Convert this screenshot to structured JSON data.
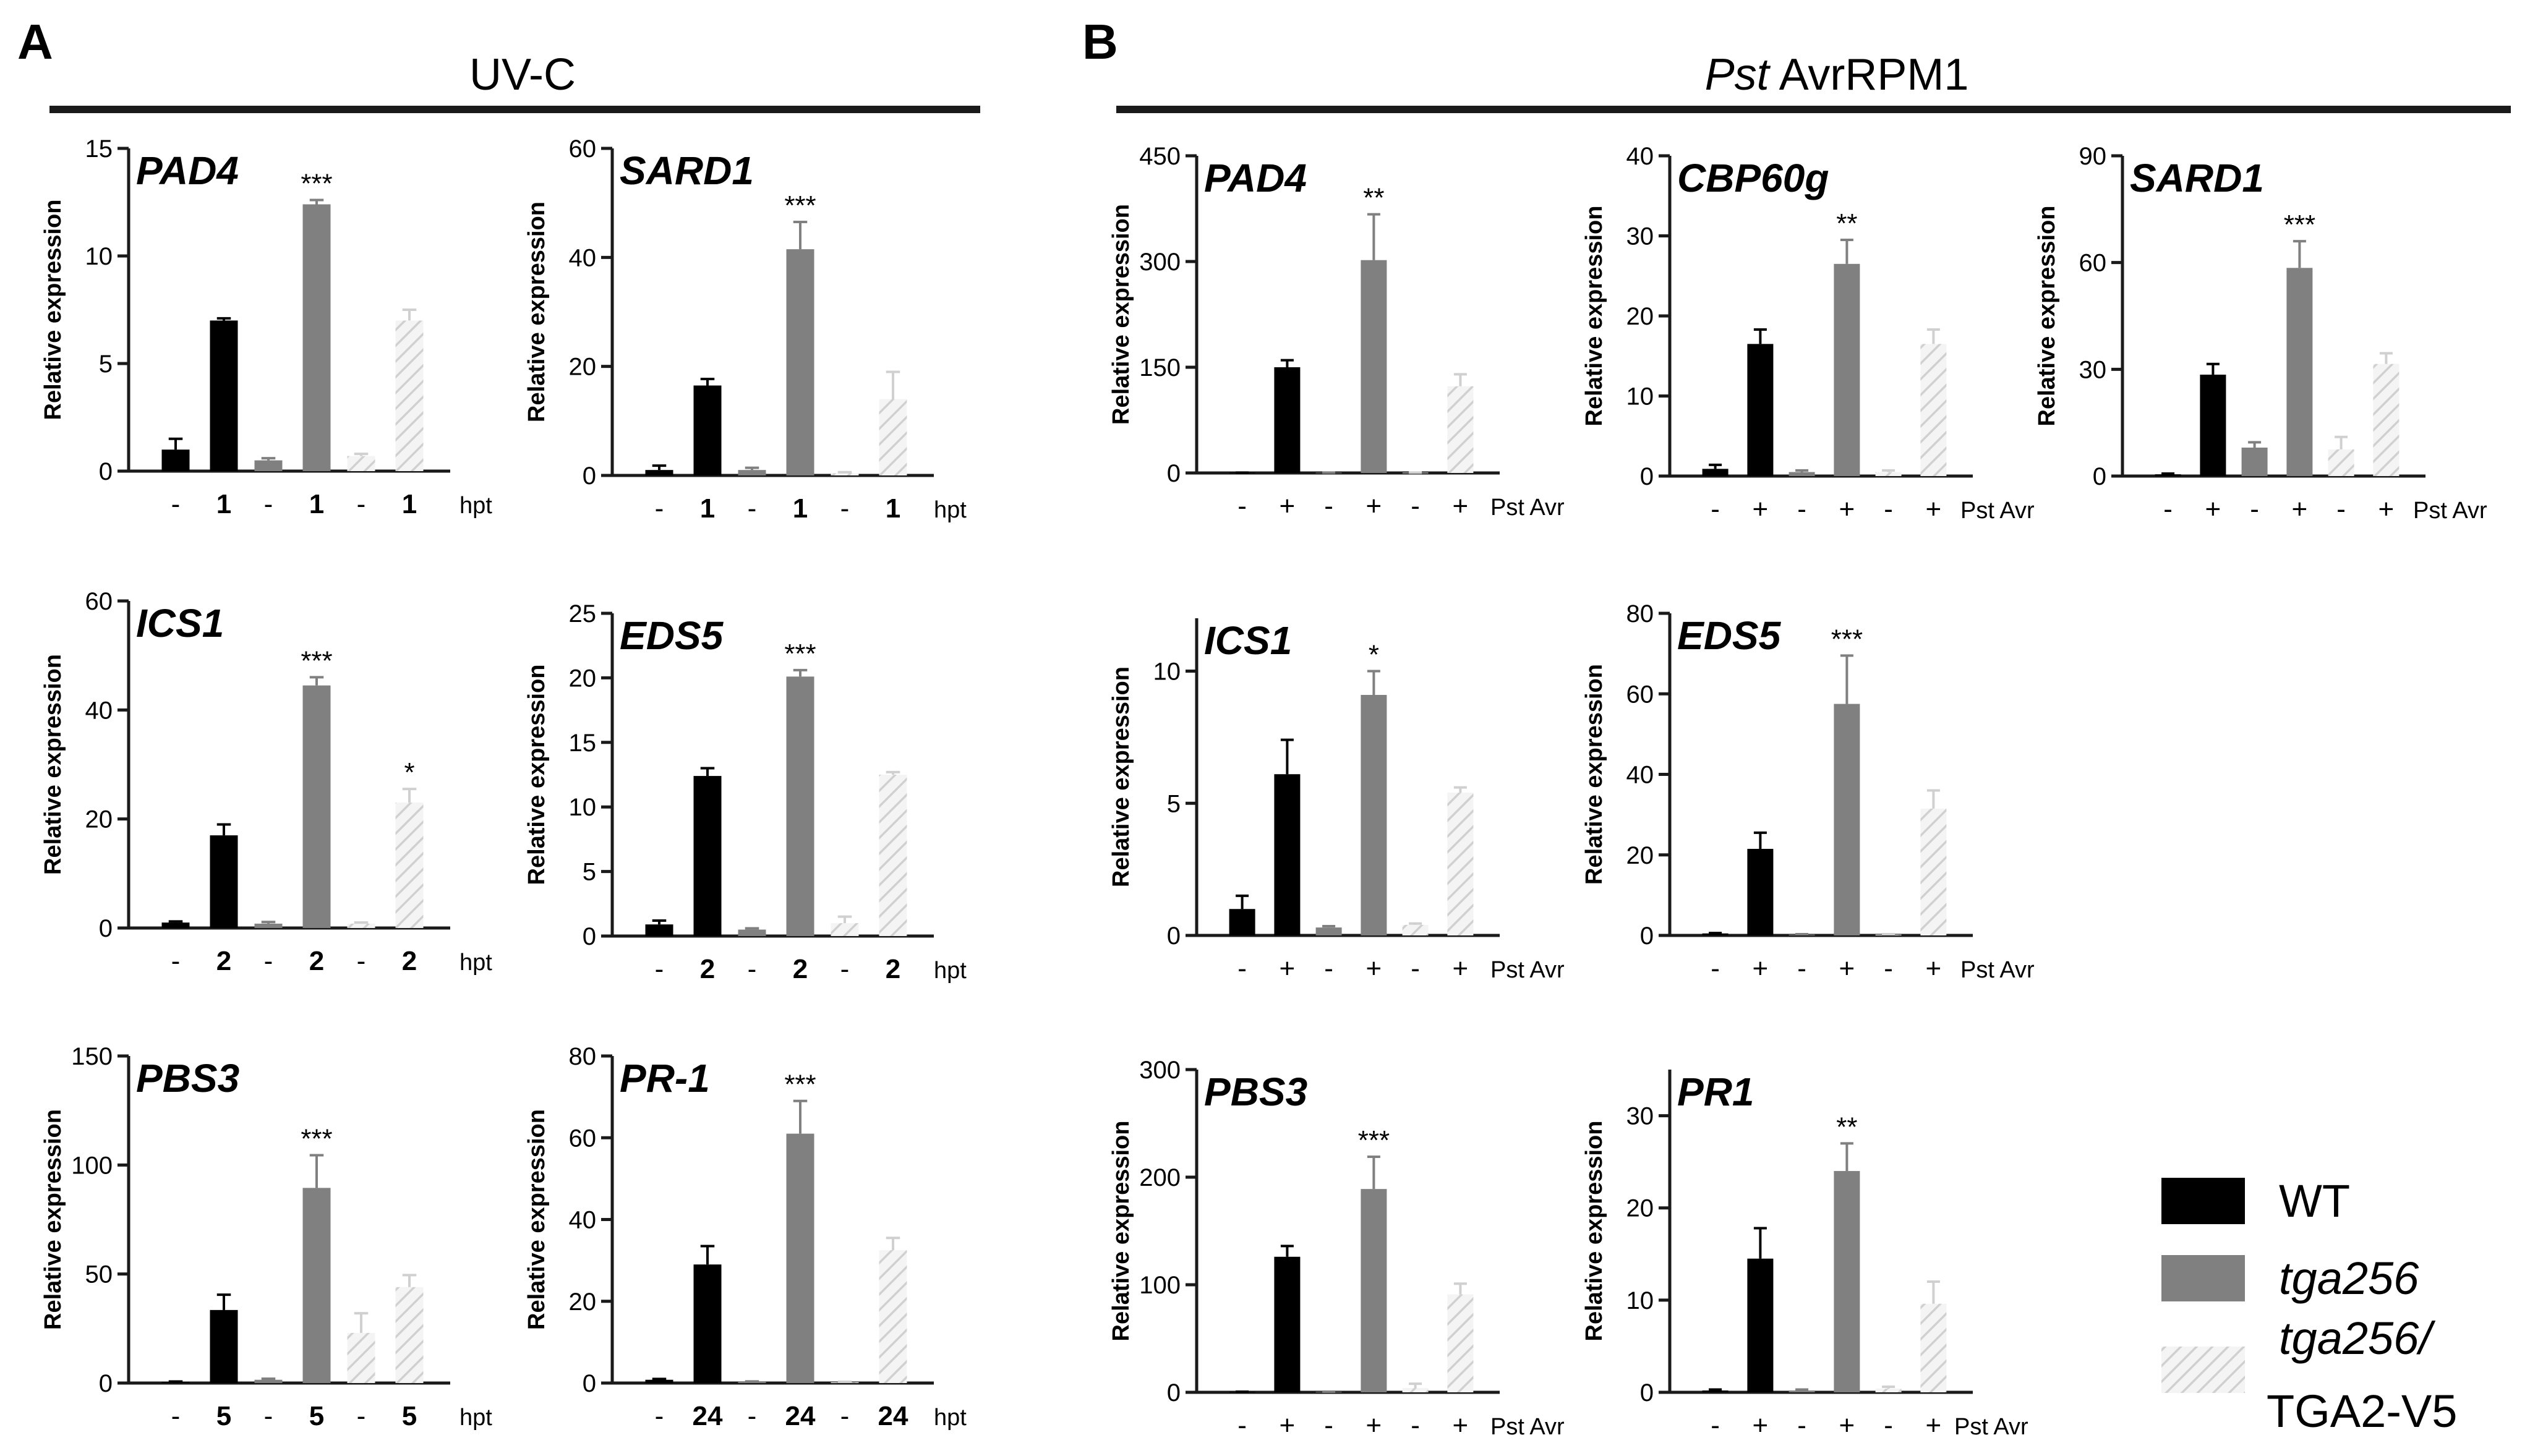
{
  "panel_A": {
    "letter": "A",
    "title": "UV-C"
  },
  "panel_B": {
    "letter": "B",
    "title_italic": "Pst",
    "title_rest": " AvrRPM1"
  },
  "legend": {
    "wt": "WT",
    "tga256": "tga256",
    "comp_line1": "tga256/",
    "comp_line2": "TGA2-V5"
  },
  "colors": {
    "wt": "#000000",
    "tga256": "#808080",
    "comp": "#d0d0d0",
    "comp_hatch": "#f4f4f4",
    "axis": "#1a1a1a"
  },
  "chart_data": [
    {
      "id": "A1",
      "panel": "A",
      "type": "bar",
      "gene": "PAD4",
      "ylabel": "Relative expression",
      "ylim": [
        0,
        15
      ],
      "yticks": [
        0,
        5,
        10,
        15
      ],
      "x_labels": [
        "-",
        "1",
        "-",
        "1",
        "-",
        "1"
      ],
      "x_unit": "hpt",
      "series": [
        {
          "name": "WT",
          "values": [
            1.0,
            7.0
          ],
          "errors": [
            0.5,
            0.1
          ]
        },
        {
          "name": "tga256",
          "values": [
            0.5,
            12.4
          ],
          "errors": [
            0.1,
            0.2
          ]
        },
        {
          "name": "tga256/TGA2-V5",
          "values": [
            0.7,
            7.0
          ],
          "errors": [
            0.1,
            0.5
          ]
        }
      ],
      "significance": [
        {
          "bar": 3,
          "label": "***"
        }
      ]
    },
    {
      "id": "A2",
      "panel": "A",
      "type": "bar",
      "gene": "SARD1",
      "ylabel": "Relative expression",
      "ylim": [
        0,
        60
      ],
      "yticks": [
        0,
        20,
        40,
        60
      ],
      "x_labels": [
        "-",
        "1",
        "-",
        "1",
        "-",
        "1"
      ],
      "x_unit": "hpt",
      "series": [
        {
          "name": "WT",
          "values": [
            1.0,
            16.5
          ],
          "errors": [
            0.8,
            1.2
          ]
        },
        {
          "name": "tga256",
          "values": [
            1.0,
            41.5
          ],
          "errors": [
            0.4,
            5.0
          ]
        },
        {
          "name": "tga256/TGA2-V5",
          "values": [
            0.4,
            14.0
          ],
          "errors": [
            0.2,
            5.0
          ]
        }
      ],
      "significance": [
        {
          "bar": 3,
          "label": "***"
        }
      ]
    },
    {
      "id": "A3",
      "panel": "A",
      "type": "bar",
      "gene": "ICS1",
      "ylabel": "Relative expression",
      "ylim": [
        0,
        60
      ],
      "yticks": [
        0,
        20,
        40,
        60
      ],
      "x_labels": [
        "-",
        "2",
        "-",
        "2",
        "-",
        "2"
      ],
      "x_unit": "hpt",
      "series": [
        {
          "name": "WT",
          "values": [
            1.0,
            17.0
          ],
          "errors": [
            0.2,
            2.0
          ]
        },
        {
          "name": "tga256",
          "values": [
            0.8,
            44.5
          ],
          "errors": [
            0.3,
            1.5
          ]
        },
        {
          "name": "tga256/TGA2-V5",
          "values": [
            0.8,
            23.0
          ],
          "errors": [
            0.2,
            2.5
          ]
        }
      ],
      "significance": [
        {
          "bar": 3,
          "label": "***"
        },
        {
          "bar": 5,
          "label": "*"
        }
      ]
    },
    {
      "id": "A4",
      "panel": "A",
      "type": "bar",
      "gene": "EDS5",
      "ylabel": "Relative expression",
      "ylim": [
        0,
        25
      ],
      "yticks": [
        0,
        5,
        10,
        15,
        20,
        25
      ],
      "x_labels": [
        "-",
        "2",
        "-",
        "2",
        "-",
        "2"
      ],
      "x_unit": "hpt",
      "series": [
        {
          "name": "WT",
          "values": [
            0.9,
            12.4
          ],
          "errors": [
            0.3,
            0.6
          ]
        },
        {
          "name": "tga256",
          "values": [
            0.5,
            20.1
          ],
          "errors": [
            0.1,
            0.5
          ]
        },
        {
          "name": "tga256/TGA2-V5",
          "values": [
            1.0,
            12.5
          ],
          "errors": [
            0.5,
            0.2
          ]
        }
      ],
      "significance": [
        {
          "bar": 3,
          "label": "***"
        }
      ]
    },
    {
      "id": "A5",
      "panel": "A",
      "type": "bar",
      "gene": "PBS3",
      "ylabel": "Relative expression",
      "ylim": [
        0,
        150
      ],
      "yticks": [
        0,
        50,
        100,
        150
      ],
      "x_labels": [
        "-",
        "5",
        "-",
        "5",
        "-",
        "5"
      ],
      "x_unit": "hpt",
      "series": [
        {
          "name": "WT",
          "values": [
            0.5,
            33.5
          ],
          "errors": [
            0.2,
            7.0
          ]
        },
        {
          "name": "tga256",
          "values": [
            1.5,
            89.5
          ],
          "errors": [
            0.5,
            15.0
          ]
        },
        {
          "name": "tga256/TGA2-V5",
          "values": [
            23.0,
            44.0
          ],
          "errors": [
            9.0,
            5.5
          ]
        }
      ],
      "significance": [
        {
          "bar": 3,
          "label": "***"
        }
      ]
    },
    {
      "id": "A6",
      "panel": "A",
      "type": "bar",
      "gene": "PR-1",
      "ylabel": "Relative expression",
      "ylim": [
        0,
        80
      ],
      "yticks": [
        0,
        20,
        40,
        60,
        80
      ],
      "x_labels": [
        "-",
        "24",
        "-",
        "24",
        "-",
        "24"
      ],
      "x_unit": "hpt",
      "series": [
        {
          "name": "WT",
          "values": [
            0.8,
            29.0
          ],
          "errors": [
            0.2,
            4.5
          ]
        },
        {
          "name": "tga256",
          "values": [
            0.3,
            61.0
          ],
          "errors": [
            0.1,
            8.0
          ]
        },
        {
          "name": "tga256/TGA2-V5",
          "values": [
            0.2,
            32.5
          ],
          "errors": [
            0.1,
            3.0
          ]
        }
      ],
      "significance": [
        {
          "bar": 3,
          "label": "***"
        }
      ]
    },
    {
      "id": "B1",
      "panel": "B",
      "type": "bar",
      "gene": "PAD4",
      "ylabel": "Relative expression",
      "ylim": [
        0,
        450
      ],
      "yticks": [
        0,
        150,
        300,
        450
      ],
      "x_labels": [
        "-",
        "+",
        "-",
        "+",
        "-",
        "+"
      ],
      "x_unit": "Pst Avr",
      "series": [
        {
          "name": "WT",
          "values": [
            0.5,
            150
          ],
          "errors": [
            0.1,
            10
          ]
        },
        {
          "name": "tga256",
          "values": [
            0.5,
            302
          ],
          "errors": [
            0.1,
            65
          ]
        },
        {
          "name": "tga256/TGA2-V5",
          "values": [
            0.5,
            123
          ],
          "errors": [
            0.1,
            17
          ]
        }
      ],
      "significance": [
        {
          "bar": 3,
          "label": "**"
        }
      ]
    },
    {
      "id": "B2",
      "panel": "B",
      "type": "bar",
      "gene": "CBP60g",
      "ylabel": "Relative expression",
      "ylim": [
        0,
        40
      ],
      "yticks": [
        0,
        10,
        20,
        30,
        40
      ],
      "x_labels": [
        "-",
        "+",
        "-",
        "+",
        "-",
        "+"
      ],
      "x_unit": "Pst Avr",
      "series": [
        {
          "name": "WT",
          "values": [
            0.9,
            16.5
          ],
          "errors": [
            0.5,
            1.8
          ]
        },
        {
          "name": "tga256",
          "values": [
            0.5,
            26.5
          ],
          "errors": [
            0.2,
            3.0
          ]
        },
        {
          "name": "tga256/TGA2-V5",
          "values": [
            0.5,
            16.5
          ],
          "errors": [
            0.2,
            1.8
          ]
        }
      ],
      "significance": [
        {
          "bar": 3,
          "label": "**"
        }
      ]
    },
    {
      "id": "B3",
      "panel": "B",
      "type": "bar",
      "gene": "SARD1",
      "ylabel": "Relative expression",
      "ylim": [
        0,
        90
      ],
      "yticks": [
        0,
        30,
        60,
        90
      ],
      "x_labels": [
        "-",
        "+",
        "-",
        "+",
        "-",
        "+"
      ],
      "x_unit": "Pst Avr",
      "series": [
        {
          "name": "WT",
          "values": [
            0.5,
            28.5
          ],
          "errors": [
            0.2,
            3.0
          ]
        },
        {
          "name": "tga256",
          "values": [
            8.0,
            58.5
          ],
          "errors": [
            1.5,
            7.5
          ]
        },
        {
          "name": "tga256/TGA2-V5",
          "values": [
            7.5,
            31.5
          ],
          "errors": [
            3.5,
            3.0
          ]
        }
      ],
      "significance": [
        {
          "bar": 3,
          "label": "***"
        }
      ]
    },
    {
      "id": "B4",
      "panel": "B",
      "type": "bar",
      "gene": "ICS1",
      "ylabel": "Relative expression",
      "ylim": [
        0,
        12
      ],
      "yticks": [
        0,
        5,
        10
      ],
      "x_labels": [
        "-",
        "+",
        "-",
        "+",
        "-",
        "+"
      ],
      "x_unit": "Pst Avr",
      "series": [
        {
          "name": "WT",
          "values": [
            1.0,
            6.1
          ],
          "errors": [
            0.5,
            1.3
          ]
        },
        {
          "name": "tga256",
          "values": [
            0.3,
            9.1
          ],
          "errors": [
            0.05,
            0.9
          ]
        },
        {
          "name": "tga256/TGA2-V5",
          "values": [
            0.4,
            5.4
          ],
          "errors": [
            0.05,
            0.2
          ]
        }
      ],
      "significance": [
        {
          "bar": 3,
          "label": "*"
        }
      ]
    },
    {
      "id": "B5",
      "panel": "B",
      "type": "bar",
      "gene": "EDS5",
      "ylabel": "Relative expression",
      "ylim": [
        0,
        80
      ],
      "yticks": [
        0,
        20,
        40,
        60,
        80
      ],
      "x_labels": [
        "-",
        "+",
        "-",
        "+",
        "-",
        "+"
      ],
      "x_unit": "Pst Avr",
      "series": [
        {
          "name": "WT",
          "values": [
            0.5,
            21.5
          ],
          "errors": [
            0.1,
            4.0
          ]
        },
        {
          "name": "tga256",
          "values": [
            0.2,
            57.5
          ],
          "errors": [
            0.1,
            12.0
          ]
        },
        {
          "name": "tga256/TGA2-V5",
          "values": [
            0.2,
            31.5
          ],
          "errors": [
            0.1,
            4.5
          ]
        }
      ],
      "significance": [
        {
          "bar": 3,
          "label": "***"
        }
      ]
    },
    {
      "id": "B6",
      "panel": "B",
      "type": "bar",
      "gene": "PBS3",
      "ylabel": "Relative expression",
      "ylim": [
        0,
        300
      ],
      "yticks": [
        0,
        100,
        200,
        300
      ],
      "x_labels": [
        "-",
        "+",
        "-",
        "+",
        "-",
        "+"
      ],
      "x_unit": "Pst Avr",
      "series": [
        {
          "name": "WT",
          "values": [
            0.5,
            126
          ],
          "errors": [
            0.1,
            10
          ]
        },
        {
          "name": "tga256",
          "values": [
            0.5,
            189
          ],
          "errors": [
            0.1,
            30
          ]
        },
        {
          "name": "tga256/TGA2-V5",
          "values": [
            4.0,
            91
          ],
          "errors": [
            4.0,
            10
          ]
        }
      ],
      "significance": [
        {
          "bar": 3,
          "label": "***"
        }
      ]
    },
    {
      "id": "B7",
      "panel": "B",
      "type": "bar",
      "gene": "PR1",
      "ylabel": "Relative expression",
      "ylim": [
        0,
        35
      ],
      "yticks": [
        0,
        10,
        20,
        30
      ],
      "x_labels": [
        "-",
        "+",
        "-",
        "+",
        "-",
        "+"
      ],
      "x_unit": "Pst Avr",
      "series": [
        {
          "name": "WT",
          "values": [
            0.2,
            14.5
          ],
          "errors": [
            0.1,
            3.3
          ]
        },
        {
          "name": "tga256",
          "values": [
            0.2,
            24.0
          ],
          "errors": [
            0.1,
            3.0
          ]
        },
        {
          "name": "tga256/TGA2-V5",
          "values": [
            0.4,
            9.6
          ],
          "errors": [
            0.2,
            2.4
          ]
        }
      ],
      "significance": [
        {
          "bar": 3,
          "label": "**"
        }
      ]
    }
  ]
}
